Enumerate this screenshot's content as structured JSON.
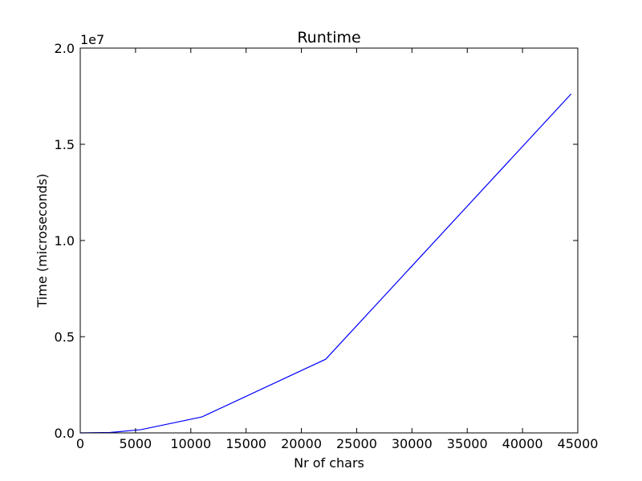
{
  "chart_data": {
    "type": "line",
    "title": "Runtime",
    "xlabel": "Nr of chars",
    "ylabel": "Time (microseconds)",
    "y_offset_label": "1e7",
    "y_scale": 10000000,
    "xlim": [
      0,
      45000
    ],
    "ylim": [
      0,
      20000000
    ],
    "grid": false,
    "x_ticks": [
      0,
      5000,
      10000,
      15000,
      20000,
      25000,
      30000,
      35000,
      40000,
      45000
    ],
    "x_tick_labels": [
      "0",
      "5000",
      "10000",
      "15000",
      "20000",
      "25000",
      "30000",
      "35000",
      "40000",
      "45000"
    ],
    "y_ticks": [
      0,
      5000000,
      10000000,
      15000000,
      20000000
    ],
    "y_tick_labels": [
      "0.0",
      "0.5",
      "1.0",
      "1.5",
      "2.0"
    ],
    "series": [
      {
        "color": "#0000ff",
        "x": [
          0,
          2700,
          5500,
          11000,
          22200,
          44400
        ],
        "y": [
          0,
          20000,
          170000,
          830000,
          3830000,
          17620000
        ]
      }
    ]
  }
}
